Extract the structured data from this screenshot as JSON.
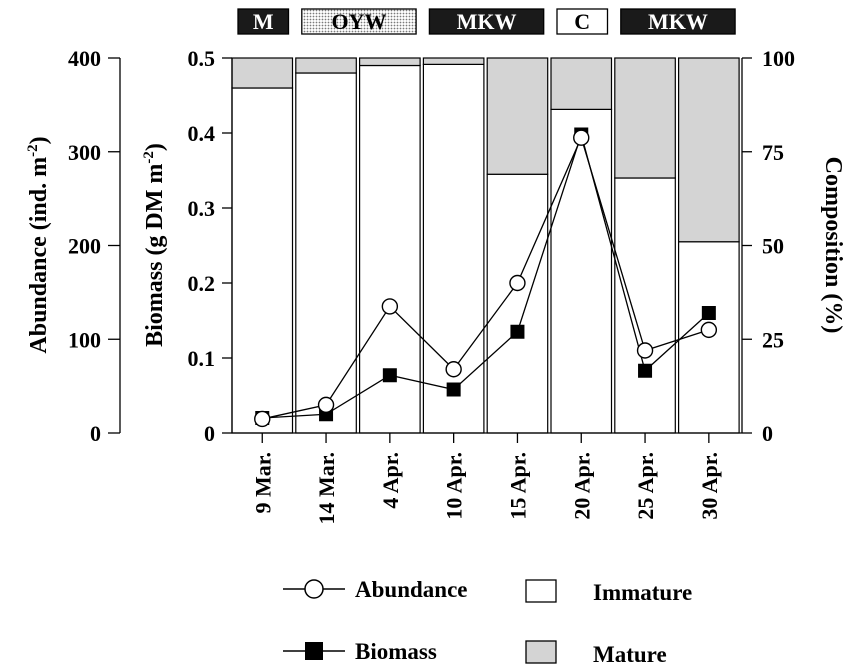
{
  "chart_data": {
    "type": "bar",
    "categories": [
      "9 Mar.",
      "14 Mar.",
      "4 Apr.",
      "10 Apr.",
      "15 Apr.",
      "20 Apr.",
      "25 Apr.",
      "30 Apr."
    ],
    "period_bands": [
      {
        "label": "M",
        "fill": "black",
        "start": 0,
        "end": 0
      },
      {
        "label": "OYW",
        "fill": "dotted",
        "start": 1,
        "end": 2
      },
      {
        "label": "MKW",
        "fill": "black",
        "start": 3,
        "end": 4
      },
      {
        "label": "C",
        "fill": "white",
        "start": 5,
        "end": 5
      },
      {
        "label": "MKW",
        "fill": "black",
        "start": 6,
        "end": 7
      }
    ],
    "composition": {
      "ylabel": "Composition (%)",
      "ylim": [
        0,
        100
      ],
      "ticks": [
        "0",
        "25",
        "50",
        "75",
        "100"
      ],
      "series": [
        {
          "name": "Immature",
          "color": "#ffffff",
          "values": [
            92,
            96,
            98,
            98.3,
            69,
            86.3,
            68,
            51
          ]
        },
        {
          "name": "Mature",
          "color": "#d4d4d4",
          "values": [
            8,
            4,
            2,
            1.7,
            31,
            13.7,
            32,
            49
          ]
        }
      ]
    },
    "biomass": {
      "name": "Biomass",
      "ylabel": "Biomass (g DM m-2)",
      "ylim": [
        0,
        0.5
      ],
      "ticks": [
        "0",
        "0.1",
        "0.2",
        "0.3",
        "0.4",
        "0.5"
      ],
      "values": [
        0.02,
        0.025,
        0.077,
        0.058,
        0.135,
        0.398,
        0.083,
        0.16
      ]
    },
    "abundance": {
      "name": "Abundance",
      "ylabel": "Abundance (ind. m-2)",
      "ylim": [
        0,
        400
      ],
      "ticks": [
        "0",
        "100",
        "200",
        "300",
        "400"
      ],
      "values": [
        15,
        30,
        135,
        68,
        160,
        315,
        88,
        110
      ]
    },
    "legend": {
      "abundance": "Abundance",
      "biomass": "Biomass",
      "immature": "Immature",
      "mature": "Mature"
    }
  }
}
